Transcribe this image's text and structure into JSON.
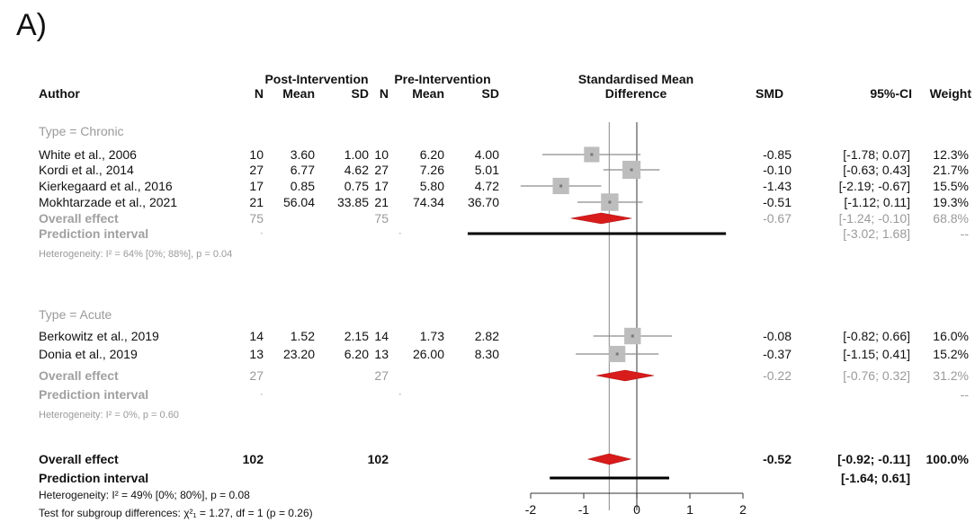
{
  "panel_label": "A)",
  "headers": {
    "author": "Author",
    "post_group": "Post-Intervention",
    "pre_group": "Pre-Intervention",
    "n": "N",
    "mean": "Mean",
    "sd": "SD",
    "smd_title_line1": "Standardised Mean",
    "smd_title_line2": "Difference",
    "smd": "SMD",
    "ci": "95%-CI",
    "weight": "Weight"
  },
  "subgroups": [
    {
      "label": "Type = Chronic",
      "studies": [
        {
          "author": "White et al., 2006",
          "n1": "10",
          "mean1": "3.60",
          "sd1": "1.00",
          "n2": "10",
          "mean2": "6.20",
          "sd2": "4.00",
          "smd_text": "-0.85",
          "ci_text": "[-1.78;  0.07]",
          "weight_text": "12.3%",
          "smd": -0.85,
          "lower": -1.78,
          "upper": 0.07,
          "weight": 12.3
        },
        {
          "author": "Kordi et al., 2014",
          "n1": "27",
          "mean1": "6.77",
          "sd1": "4.62",
          "n2": "27",
          "mean2": "7.26",
          "sd2": "5.01",
          "smd_text": "-0.10",
          "ci_text": "[-0.63;  0.43]",
          "weight_text": "21.7%",
          "smd": -0.1,
          "lower": -0.63,
          "upper": 0.43,
          "weight": 21.7
        },
        {
          "author": "Kierkegaard et al., 2016",
          "n1": "17",
          "mean1": "0.85",
          "sd1": "0.75",
          "n2": "17",
          "mean2": "5.80",
          "sd2": "4.72",
          "smd_text": "-1.43",
          "ci_text": "[-2.19; -0.67]",
          "weight_text": "15.5%",
          "smd": -1.43,
          "lower": -2.19,
          "upper": -0.67,
          "weight": 15.5
        },
        {
          "author": "Mokhtarzade et al., 2021",
          "n1": "21",
          "mean1": "56.04",
          "sd1": "33.85",
          "n2": "21",
          "mean2": "74.34",
          "sd2": "36.70",
          "smd_text": "-0.51",
          "ci_text": "[-1.12;  0.11]",
          "weight_text": "19.3%",
          "smd": -0.51,
          "lower": -1.12,
          "upper": 0.11,
          "weight": 19.3
        }
      ],
      "overall": {
        "label": "Overall effect",
        "n1": "75",
        "n2": "75",
        "smd_text": "-0.67",
        "ci_text": "[-1.24; -0.10]",
        "weight_text": "68.8%",
        "smd": -0.67,
        "lower": -1.24,
        "upper": -0.1
      },
      "prediction": {
        "label": "Prediction interval",
        "n1": "",
        "n2": "",
        "ci_text": "[-3.02;  1.68]",
        "weight_text": "--",
        "lower": -3.02,
        "upper": 1.68
      },
      "heterogeneity": "Heterogeneity: I² = 64% [0%; 88%], p = 0.04"
    },
    {
      "label": "Type = Acute",
      "studies": [
        {
          "author": "Berkowitz et al., 2019",
          "n1": "14",
          "mean1": "1.52",
          "sd1": "2.15",
          "n2": "14",
          "mean2": "1.73",
          "sd2": "2.82",
          "smd_text": "-0.08",
          "ci_text": "[-0.82;  0.66]",
          "weight_text": "16.0%",
          "smd": -0.08,
          "lower": -0.82,
          "upper": 0.66,
          "weight": 16.0
        },
        {
          "author": "Donia et al., 2019",
          "n1": "13",
          "mean1": "23.20",
          "sd1": "6.20",
          "n2": "13",
          "mean2": "26.00",
          "sd2": "8.30",
          "smd_text": "-0.37",
          "ci_text": "[-1.15;  0.41]",
          "weight_text": "15.2%",
          "smd": -0.37,
          "lower": -1.15,
          "upper": 0.41,
          "weight": 15.2
        }
      ],
      "overall": {
        "label": "Overall effect",
        "n1": "27",
        "n2": "27",
        "smd_text": "-0.22",
        "ci_text": "[-0.76;  0.32]",
        "weight_text": "31.2%",
        "smd": -0.22,
        "lower": -0.76,
        "upper": 0.32
      },
      "prediction": {
        "label": "Prediction interval",
        "n1": "",
        "n2": "",
        "ci_text": "",
        "weight_text": "--"
      },
      "heterogeneity": "Heterogeneity: I² = 0%, p = 0.60"
    }
  ],
  "overall": {
    "label": "Overall effect",
    "n1": "102",
    "n2": "102",
    "smd_text": "-0.52",
    "ci_text": "[-0.92; -0.11]",
    "weight_text": "100.0%",
    "smd": -0.52,
    "lower": -0.92,
    "upper": -0.11
  },
  "prediction": {
    "label": "Prediction interval",
    "ci_text": "[-1.64;  0.61]",
    "lower": -1.64,
    "upper": 0.61
  },
  "heterogeneity": "Heterogeneity: I² = 49% [0%; 80%], p = 0.08",
  "subgroup_test": "Test for subgroup differences: χ²₁ = 1.27, df = 1 (p = 0.26)",
  "chart_data": {
    "type": "forest",
    "x_ticks": [
      -2,
      -1,
      0,
      1,
      2
    ],
    "x_tick_labels": [
      "-2",
      "-1",
      "0",
      "1",
      "2"
    ],
    "xlim": [
      -2,
      2
    ],
    "reference_line": 0,
    "overall_line": -0.52,
    "colors": {
      "diamond": "#d81b1b",
      "box": "#bdbdbd",
      "ci_line": "#8c8c8c",
      "prediction": "#000000",
      "subgroup_text": "#9a9a9a"
    }
  }
}
